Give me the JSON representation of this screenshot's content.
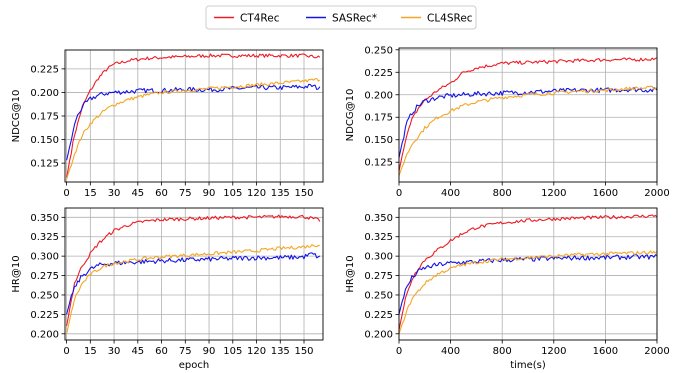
{
  "legend": {
    "entries": [
      {
        "name": "CT4Rec",
        "color": "#ee1c25"
      },
      {
        "name": "SASRec*",
        "color": "#1414e6"
      },
      {
        "name": "CL4SRec",
        "color": "#f5a623"
      }
    ]
  },
  "chart_data": [
    {
      "type": "line",
      "id": "ndcg-epoch",
      "xlabel": "",
      "ylabel": "NDCG@10",
      "xlim": [
        -1,
        162
      ],
      "ylim": [
        0.105,
        0.245
      ],
      "xticks": [
        0,
        15,
        30,
        45,
        60,
        75,
        90,
        105,
        120,
        135,
        150
      ],
      "yticks": [
        0.125,
        0.15,
        0.175,
        0.2,
        0.225
      ],
      "ytick_labels": [
        "0.125",
        "0.150",
        "0.175",
        "0.200",
        "0.225"
      ],
      "grid": true,
      "series": [
        {
          "name": "CT4Rec",
          "color": "#ee1c25",
          "x": [
            0,
            5,
            10,
            15,
            20,
            25,
            30,
            40,
            50,
            60,
            75,
            90,
            105,
            120,
            135,
            150,
            160
          ],
          "y": [
            0.11,
            0.155,
            0.185,
            0.202,
            0.215,
            0.224,
            0.23,
            0.234,
            0.236,
            0.237,
            0.238,
            0.239,
            0.239,
            0.239,
            0.239,
            0.239,
            0.237
          ]
        },
        {
          "name": "SASRec*",
          "color": "#1414e6",
          "x": [
            0,
            3,
            6,
            10,
            15,
            20,
            25,
            30,
            40,
            50,
            60,
            75,
            90,
            105,
            120,
            135,
            150,
            155,
            160
          ],
          "y": [
            0.128,
            0.15,
            0.172,
            0.185,
            0.193,
            0.197,
            0.199,
            0.2,
            0.201,
            0.202,
            0.202,
            0.203,
            0.203,
            0.204,
            0.205,
            0.205,
            0.206,
            0.207,
            0.204
          ]
        },
        {
          "name": "CL4SRec",
          "color": "#f5a623",
          "x": [
            0,
            5,
            10,
            15,
            20,
            25,
            30,
            40,
            50,
            60,
            75,
            90,
            105,
            120,
            135,
            150,
            160
          ],
          "y": [
            0.108,
            0.135,
            0.155,
            0.167,
            0.175,
            0.182,
            0.187,
            0.193,
            0.197,
            0.2,
            0.202,
            0.204,
            0.206,
            0.208,
            0.21,
            0.212,
            0.214
          ]
        }
      ]
    },
    {
      "type": "line",
      "id": "ndcg-time",
      "xlabel": "",
      "ylabel": "NDCG@10",
      "xlim": [
        0,
        2000
      ],
      "ylim": [
        0.103,
        0.252
      ],
      "xticks": [
        0,
        400,
        800,
        1200,
        1600,
        2000
      ],
      "yticks": [
        0.125,
        0.15,
        0.175,
        0.2,
        0.225,
        0.25
      ],
      "ytick_labels": [
        "0.125",
        "0.150",
        "0.175",
        "0.200",
        "0.225",
        "0.250"
      ],
      "grid": true,
      "series": [
        {
          "name": "CT4Rec",
          "color": "#ee1c25",
          "x": [
            0,
            50,
            100,
            150,
            200,
            300,
            400,
            500,
            600,
            800,
            1000,
            1200,
            1400,
            1600,
            1800,
            2000
          ],
          "y": [
            0.115,
            0.15,
            0.172,
            0.185,
            0.194,
            0.205,
            0.213,
            0.225,
            0.23,
            0.235,
            0.236,
            0.237,
            0.238,
            0.239,
            0.239,
            0.24
          ]
        },
        {
          "name": "SASRec*",
          "color": "#1414e6",
          "x": [
            0,
            30,
            60,
            100,
            150,
            200,
            300,
            400,
            600,
            800,
            1000,
            1200,
            1400,
            1600,
            1800,
            2000
          ],
          "y": [
            0.13,
            0.15,
            0.168,
            0.18,
            0.188,
            0.193,
            0.197,
            0.199,
            0.201,
            0.202,
            0.203,
            0.204,
            0.205,
            0.205,
            0.206,
            0.205
          ]
        },
        {
          "name": "CL4SRec",
          "color": "#f5a623",
          "x": [
            0,
            50,
            100,
            200,
            300,
            400,
            500,
            600,
            800,
            1000,
            1200,
            1400,
            1600,
            1800,
            2000
          ],
          "y": [
            0.11,
            0.13,
            0.145,
            0.163,
            0.175,
            0.182,
            0.188,
            0.192,
            0.197,
            0.2,
            0.202,
            0.204,
            0.205,
            0.207,
            0.208
          ]
        }
      ]
    },
    {
      "type": "line",
      "id": "hr-epoch",
      "xlabel": "epoch",
      "ylabel": "HR@10",
      "xlim": [
        -1,
        162
      ],
      "ylim": [
        0.192,
        0.362
      ],
      "xticks": [
        0,
        15,
        30,
        45,
        60,
        75,
        90,
        105,
        120,
        135,
        150
      ],
      "yticks": [
        0.2,
        0.225,
        0.25,
        0.275,
        0.3,
        0.325,
        0.35
      ],
      "ytick_labels": [
        "0.200",
        "0.225",
        "0.250",
        "0.275",
        "0.300",
        "0.325",
        "0.350"
      ],
      "grid": true,
      "series": [
        {
          "name": "CT4Rec",
          "color": "#ee1c25",
          "x": [
            0,
            5,
            10,
            15,
            20,
            25,
            30,
            40,
            50,
            60,
            75,
            90,
            105,
            120,
            135,
            150,
            160
          ],
          "y": [
            0.21,
            0.265,
            0.288,
            0.303,
            0.316,
            0.325,
            0.333,
            0.341,
            0.345,
            0.347,
            0.348,
            0.349,
            0.35,
            0.35,
            0.351,
            0.351,
            0.346
          ]
        },
        {
          "name": "SASRec*",
          "color": "#1414e6",
          "x": [
            0,
            3,
            6,
            10,
            15,
            20,
            25,
            30,
            40,
            50,
            60,
            75,
            90,
            105,
            120,
            135,
            150,
            155,
            160
          ],
          "y": [
            0.225,
            0.248,
            0.263,
            0.275,
            0.283,
            0.288,
            0.29,
            0.291,
            0.292,
            0.293,
            0.294,
            0.295,
            0.296,
            0.297,
            0.298,
            0.298,
            0.299,
            0.303,
            0.298
          ]
        },
        {
          "name": "CL4SRec",
          "color": "#f5a623",
          "x": [
            0,
            5,
            10,
            15,
            20,
            25,
            30,
            40,
            50,
            60,
            75,
            90,
            105,
            120,
            135,
            150,
            160
          ],
          "y": [
            0.2,
            0.245,
            0.265,
            0.276,
            0.283,
            0.288,
            0.291,
            0.294,
            0.297,
            0.299,
            0.301,
            0.303,
            0.305,
            0.307,
            0.31,
            0.312,
            0.315
          ]
        }
      ]
    },
    {
      "type": "line",
      "id": "hr-time",
      "xlabel": "time(s)",
      "ylabel": "HR@10",
      "xlim": [
        0,
        2000
      ],
      "ylim": [
        0.192,
        0.362
      ],
      "xticks": [
        0,
        400,
        800,
        1200,
        1600,
        2000
      ],
      "yticks": [
        0.2,
        0.225,
        0.25,
        0.275,
        0.3,
        0.325,
        0.35
      ],
      "ytick_labels": [
        "0.200",
        "0.225",
        "0.250",
        "0.275",
        "0.300",
        "0.325",
        "0.350"
      ],
      "grid": true,
      "series": [
        {
          "name": "CT4Rec",
          "color": "#ee1c25",
          "x": [
            0,
            50,
            100,
            150,
            200,
            300,
            400,
            500,
            600,
            800,
            1000,
            1200,
            1400,
            1600,
            1800,
            2000
          ],
          "y": [
            0.205,
            0.245,
            0.27,
            0.285,
            0.295,
            0.308,
            0.32,
            0.33,
            0.337,
            0.343,
            0.346,
            0.348,
            0.349,
            0.35,
            0.351,
            0.352
          ]
        },
        {
          "name": "SASRec*",
          "color": "#1414e6",
          "x": [
            0,
            30,
            60,
            100,
            150,
            200,
            300,
            400,
            600,
            800,
            1000,
            1200,
            1400,
            1600,
            1800,
            2000
          ],
          "y": [
            0.225,
            0.245,
            0.26,
            0.272,
            0.28,
            0.285,
            0.289,
            0.291,
            0.293,
            0.295,
            0.296,
            0.297,
            0.298,
            0.298,
            0.299,
            0.299
          ]
        },
        {
          "name": "CL4SRec",
          "color": "#f5a623",
          "x": [
            0,
            50,
            100,
            200,
            300,
            400,
            500,
            600,
            800,
            1000,
            1200,
            1400,
            1600,
            1800,
            2000
          ],
          "y": [
            0.2,
            0.225,
            0.245,
            0.265,
            0.277,
            0.284,
            0.289,
            0.292,
            0.296,
            0.298,
            0.3,
            0.302,
            0.303,
            0.304,
            0.305
          ]
        }
      ]
    }
  ]
}
